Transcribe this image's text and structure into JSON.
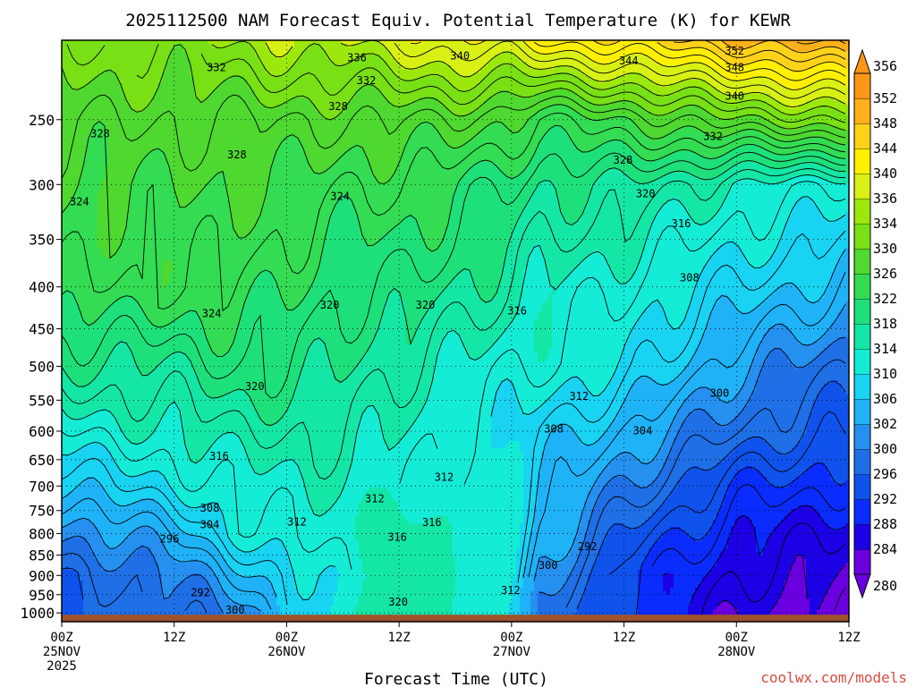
{
  "chart_data": {
    "type": "heatmap",
    "title": "2025112500 NAM Forecast Equiv. Potential Temperature (K) for KEWR",
    "xlabel": "Forecast Time (UTC)",
    "ylabel": "",
    "credit": "coolwx.com/models",
    "x_ticks": [
      {
        "hour": 0,
        "line1": "00Z",
        "line2": "25NOV",
        "line3": "2025"
      },
      {
        "hour": 12,
        "line1": "12Z",
        "line2": "",
        "line3": ""
      },
      {
        "hour": 24,
        "line1": "00Z",
        "line2": "26NOV",
        "line3": ""
      },
      {
        "hour": 36,
        "line1": "12Z",
        "line2": "",
        "line3": ""
      },
      {
        "hour": 48,
        "line1": "00Z",
        "line2": "27NOV",
        "line3": ""
      },
      {
        "hour": 60,
        "line1": "12Z",
        "line2": "",
        "line3": ""
      },
      {
        "hour": 72,
        "line1": "00Z",
        "line2": "28NOV",
        "line3": ""
      },
      {
        "hour": 84,
        "line1": "12Z",
        "line2": "",
        "line3": ""
      }
    ],
    "xlim": [
      0,
      84
    ],
    "y_ticks": [
      250,
      300,
      350,
      400,
      450,
      500,
      550,
      600,
      650,
      700,
      750,
      800,
      850,
      900,
      950,
      1000
    ],
    "ylim": [
      200,
      1025
    ],
    "y_scale": "log",
    "surface_pressure": 1005,
    "colorbar": {
      "levels": [
        280,
        284,
        288,
        292,
        296,
        300,
        302,
        306,
        310,
        314,
        318,
        322,
        326,
        330,
        334,
        336,
        340,
        344,
        348,
        352,
        356
      ],
      "colors": [
        "#6a00e0",
        "#1c00e6",
        "#0a2cff",
        "#0f52ec",
        "#1f6fe6",
        "#2590ef",
        "#1fb2f7",
        "#18d3f2",
        "#14ecd6",
        "#14e6a6",
        "#1ee07a",
        "#33dc52",
        "#4ed830",
        "#78e014",
        "#9ce80c",
        "#d8f014",
        "#fff000",
        "#ffd21a",
        "#ffb01a",
        "#ff9618"
      ],
      "extend": "both"
    },
    "theta_e_profile": {
      "hours": [
        0,
        12,
        18,
        24,
        30,
        36,
        42,
        48,
        51,
        60,
        72,
        84
      ],
      "values_by_pressure": {
        "1000": [
          296,
          298,
          300,
          306,
          312,
          318,
          314,
          310,
          300,
          292,
          284,
          282
        ],
        "900": [
          296,
          300,
          304,
          308,
          312,
          316,
          314,
          312,
          302,
          292,
          286,
          284
        ],
        "800": [
          300,
          304,
          310,
          312,
          314,
          316,
          314,
          312,
          304,
          296,
          288,
          286
        ],
        "700": [
          306,
          310,
          312,
          314,
          314,
          312,
          312,
          310,
          306,
          300,
          292,
          290
        ],
        "600": [
          312,
          314,
          316,
          316,
          316,
          314,
          312,
          310,
          308,
          304,
          298,
          294
        ],
        "500": [
          318,
          318,
          320,
          320,
          318,
          316,
          314,
          312,
          312,
          310,
          302,
          298
        ],
        "400": [
          324,
          324,
          324,
          322,
          320,
          320,
          318,
          316,
          314,
          312,
          308,
          304
        ],
        "300": [
          326,
          326,
          326,
          326,
          324,
          324,
          322,
          320,
          318,
          318,
          314,
          312
        ],
        "250": [
          328,
          328,
          328,
          328,
          328,
          328,
          328,
          326,
          324,
          326,
          330,
          332
        ],
        "200": [
          332,
          332,
          334,
          336,
          336,
          338,
          340,
          340,
          342,
          344,
          348,
          352
        ]
      }
    },
    "contour_labels": [
      {
        "text": "332",
        "hour": 16.5,
        "p": 216
      },
      {
        "text": "336",
        "hour": 31.5,
        "p": 210
      },
      {
        "text": "332",
        "hour": 32.5,
        "p": 224
      },
      {
        "text": "328",
        "hour": 29.5,
        "p": 241
      },
      {
        "text": "340",
        "hour": 42.5,
        "p": 209
      },
      {
        "text": "344",
        "hour": 60.5,
        "p": 212
      },
      {
        "text": "352",
        "hour": 71.8,
        "p": 206
      },
      {
        "text": "348",
        "hour": 71.8,
        "p": 216
      },
      {
        "text": "340",
        "hour": 71.8,
        "p": 234
      },
      {
        "text": "332",
        "hour": 69.5,
        "p": 262
      },
      {
        "text": "328",
        "hour": 59.9,
        "p": 280
      },
      {
        "text": "320",
        "hour": 62.3,
        "p": 308
      },
      {
        "text": "316",
        "hour": 66.1,
        "p": 335
      },
      {
        "text": "308",
        "hour": 67.0,
        "p": 390
      },
      {
        "text": "328",
        "hour": 4.1,
        "p": 260
      },
      {
        "text": "328",
        "hour": 18.7,
        "p": 276
      },
      {
        "text": "324",
        "hour": 1.9,
        "p": 315
      },
      {
        "text": "324",
        "hour": 29.7,
        "p": 310
      },
      {
        "text": "324",
        "hour": 16.0,
        "p": 431
      },
      {
        "text": "320",
        "hour": 28.6,
        "p": 421
      },
      {
        "text": "320",
        "hour": 38.8,
        "p": 421
      },
      {
        "text": "316",
        "hour": 48.6,
        "p": 428
      },
      {
        "text": "320",
        "hour": 20.6,
        "p": 529
      },
      {
        "text": "312",
        "hour": 55.2,
        "p": 544
      },
      {
        "text": "300",
        "hour": 70.2,
        "p": 539
      },
      {
        "text": "308",
        "hour": 52.5,
        "p": 596
      },
      {
        "text": "304",
        "hour": 62.0,
        "p": 599
      },
      {
        "text": "316",
        "hour": 16.8,
        "p": 644
      },
      {
        "text": "312",
        "hour": 40.8,
        "p": 683
      },
      {
        "text": "312",
        "hour": 33.4,
        "p": 725
      },
      {
        "text": "308",
        "hour": 15.8,
        "p": 745
      },
      {
        "text": "304",
        "hour": 15.8,
        "p": 780
      },
      {
        "text": "312",
        "hour": 25.1,
        "p": 774
      },
      {
        "text": "316",
        "hour": 39.5,
        "p": 775
      },
      {
        "text": "316",
        "hour": 35.8,
        "p": 808
      },
      {
        "text": "296",
        "hour": 11.5,
        "p": 812
      },
      {
        "text": "292",
        "hour": 56.1,
        "p": 830
      },
      {
        "text": "300",
        "hour": 51.9,
        "p": 875
      },
      {
        "text": "312",
        "hour": 47.9,
        "p": 939
      },
      {
        "text": "292",
        "hour": 14.8,
        "p": 945
      },
      {
        "text": "300",
        "hour": 18.5,
        "p": 992
      },
      {
        "text": "320",
        "hour": 35.9,
        "p": 970
      }
    ]
  }
}
